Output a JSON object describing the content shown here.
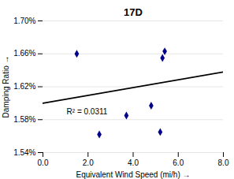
{
  "chart_data": {
    "type": "scatter",
    "title": "17D",
    "xlabel": "Equivalent Wind Speed (mi/h)",
    "ylabel": "Damping Ratio",
    "xlim": [
      0.0,
      8.0
    ],
    "ylim": [
      0.0154,
      0.017
    ],
    "xticks": [
      {
        "value": 0.0,
        "label": "0.0"
      },
      {
        "value": 2.0,
        "label": "2.0"
      },
      {
        "value": 4.0,
        "label": "4.0"
      },
      {
        "value": 6.0,
        "label": "6.0"
      },
      {
        "value": 8.0,
        "label": "8.0"
      }
    ],
    "yticks": [
      {
        "value": 0.0154,
        "label": "1.54%"
      },
      {
        "value": 0.0158,
        "label": "1.58%"
      },
      {
        "value": 0.0162,
        "label": "1.62%"
      },
      {
        "value": 0.0166,
        "label": "1.66%"
      },
      {
        "value": 0.017,
        "label": "1.70%"
      }
    ],
    "x": [
      1.5,
      2.5,
      3.7,
      4.8,
      5.2,
      5.3,
      5.4
    ],
    "values": [
      0.0166,
      0.01562,
      0.01585,
      0.01597,
      0.01565,
      0.01655,
      0.01663
    ],
    "color": "#00008B",
    "marker": "diamond",
    "fit_line": {
      "x": [
        0.0,
        8.0
      ],
      "values": [
        0.016,
        0.01638
      ],
      "color": "#000000"
    },
    "annotations": [
      {
        "text": "R² = 0.0311",
        "x": 1.05,
        "y": 0.015895
      }
    ],
    "grid": "y"
  }
}
